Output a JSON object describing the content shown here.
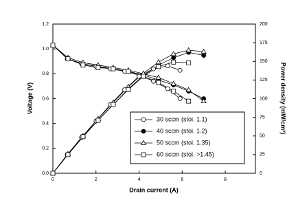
{
  "chart_data": {
    "type": "line",
    "x_label": "Drain current (A)",
    "y_label": "Voltage (V)",
    "y2_label": "Power density (mW/cm²)",
    "xlim": [
      0,
      9.4
    ],
    "xticks": [
      0,
      2,
      4,
      6,
      8
    ],
    "ylim": [
      0,
      1.2
    ],
    "yticks": [
      {
        "value": 0,
        "label": "0.0"
      },
      0.2,
      0.4,
      0.6,
      0.8,
      {
        "value": 1,
        "label": "1.0"
      },
      1.2
    ],
    "y2lim": [
      0,
      200
    ],
    "y2ticks": [
      0,
      25,
      50,
      75,
      100,
      125,
      150,
      175,
      200
    ],
    "legend": "lower right",
    "series": [
      {
        "name": "30 sccm (stoi. 1.1)",
        "marker": "circle",
        "filled": false,
        "color": "#000000",
        "x": [
          0,
          0.67,
          1.33,
          2,
          2.67,
          3.33,
          4,
          4.67,
          5.33,
          5.9
        ],
        "values": [
          1.03,
          0.92,
          0.88,
          0.86,
          0.84,
          0.82,
          0.79,
          0.74,
          0.68,
          0.6
        ],
        "y2_values": [
          0,
          25,
          48,
          70,
          92,
          112,
          130,
          140,
          144,
          138
        ]
      },
      {
        "name": "40 sccm (stoi. 1.2)",
        "marker": "circle",
        "filled": true,
        "color": "#000000",
        "x": [
          0,
          0.7,
          1.4,
          2.1,
          2.8,
          3.5,
          4.2,
          4.9,
          5.6,
          6.3,
          7
        ],
        "values": [
          1.03,
          0.92,
          0.88,
          0.86,
          0.84,
          0.82,
          0.79,
          0.75,
          0.71,
          0.66,
          0.6
        ],
        "y2_values": [
          0,
          25,
          49,
          71,
          92,
          113,
          131,
          145,
          155,
          162,
          158
        ]
      },
      {
        "name": "50 sccm (stoi. 1.35)",
        "marker": "triangle",
        "filled": false,
        "color": "#000000",
        "x": [
          0,
          0.7,
          1.4,
          2.1,
          2.8,
          3.5,
          4.2,
          4.9,
          5.6,
          6.3,
          7
        ],
        "values": [
          1.03,
          0.93,
          0.89,
          0.87,
          0.85,
          0.83,
          0.8,
          0.77,
          0.72,
          0.67,
          0.58
        ],
        "y2_values": [
          0,
          26,
          50,
          73,
          95,
          116,
          134,
          149,
          160,
          165,
          163
        ]
      },
      {
        "name": "60 sccm (stoi. >1.45)",
        "marker": "square",
        "filled": false,
        "color": "#000000",
        "x": [
          0,
          0.7,
          1.4,
          2.1,
          2.8,
          3.5,
          4.2,
          4.9,
          5.6,
          6.3
        ],
        "values": [
          1.03,
          0.92,
          0.87,
          0.85,
          0.84,
          0.82,
          0.78,
          0.73,
          0.66,
          0.58
        ],
        "y2_values": [
          0,
          25,
          49,
          71,
          92,
          112,
          130,
          143,
          149,
          148
        ]
      }
    ]
  }
}
